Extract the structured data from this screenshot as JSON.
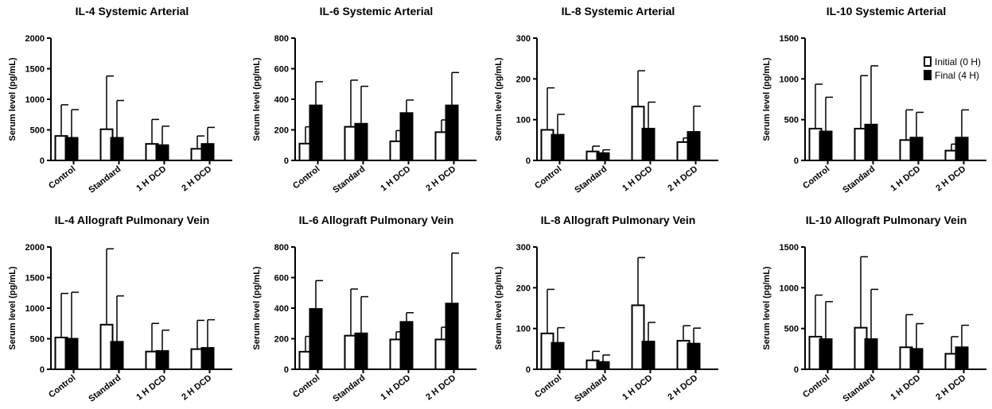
{
  "legend": {
    "initial_label": "Initial (0 H)",
    "final_label": "Final (4 H)"
  },
  "chart_data": [
    {
      "type": "bar",
      "title": "IL-4 Systemic Arterial",
      "ylabel": "Serum level (pg/mL)",
      "ylim": [
        0,
        2000
      ],
      "yticks": [
        0,
        500,
        1000,
        1500,
        2000
      ],
      "categories": [
        "Control",
        "Standard",
        "1 H DCD",
        "2 H DCD"
      ],
      "series": [
        {
          "name": "Initial (0 H)",
          "values": [
            400,
            510,
            270,
            190
          ],
          "errors": [
            510,
            870,
            400,
            210
          ],
          "color": "#ffffff"
        },
        {
          "name": "Final (4 H)",
          "values": [
            370,
            370,
            250,
            270
          ],
          "errors": [
            460,
            610,
            310,
            270
          ],
          "color": "#000000"
        }
      ]
    },
    {
      "type": "bar",
      "title": "IL-6 Systemic Arterial",
      "ylabel": "Serum level (pg/mL)",
      "ylim": [
        0,
        800
      ],
      "yticks": [
        0,
        200,
        400,
        600,
        800
      ],
      "categories": [
        "Control",
        "Standard",
        "1 H DCD",
        "2 H DCD"
      ],
      "series": [
        {
          "name": "Initial (0 H)",
          "values": [
            110,
            220,
            125,
            185
          ],
          "errors": [
            110,
            305,
            70,
            80
          ],
          "color": "#ffffff"
        },
        {
          "name": "Final (4 H)",
          "values": [
            360,
            240,
            310,
            360
          ],
          "errors": [
            155,
            245,
            85,
            215
          ],
          "color": "#000000"
        }
      ]
    },
    {
      "type": "bar",
      "title": "IL-8 Systemic Arterial",
      "ylabel": "Serum level (pg/mL)",
      "ylim": [
        0,
        300
      ],
      "yticks": [
        0,
        100,
        200,
        300
      ],
      "categories": [
        "Control",
        "Standard",
        "1 H DCD",
        "2 H DCD"
      ],
      "series": [
        {
          "name": "Initial (0 H)",
          "values": [
            75,
            22,
            132,
            45
          ],
          "errors": [
            103,
            13,
            88,
            10
          ],
          "color": "#ffffff"
        },
        {
          "name": "Final (4 H)",
          "values": [
            63,
            18,
            78,
            70
          ],
          "errors": [
            50,
            8,
            65,
            63
          ],
          "color": "#000000"
        }
      ]
    },
    {
      "type": "bar",
      "title": "IL-10 Systemic Arterial",
      "ylabel": "Serum level (pg/mL)",
      "ylim": [
        0,
        1500
      ],
      "yticks": [
        0,
        500,
        1000,
        1500
      ],
      "categories": [
        "Control",
        "Standard",
        "1 H DCD",
        "2 H DCD"
      ],
      "series": [
        {
          "name": "Initial (0 H)",
          "values": [
            390,
            390,
            250,
            120
          ],
          "errors": [
            545,
            650,
            370,
            80
          ],
          "color": "#ffffff"
        },
        {
          "name": "Final (4 H)",
          "values": [
            355,
            440,
            280,
            280
          ],
          "errors": [
            420,
            720,
            310,
            340
          ],
          "color": "#000000"
        }
      ]
    },
    {
      "type": "bar",
      "title": "IL-4 Allograft Pulmonary Vein",
      "ylabel": "Serum level (pg/mL)",
      "ylim": [
        0,
        2000
      ],
      "yticks": [
        0,
        500,
        1000,
        1500,
        2000
      ],
      "categories": [
        "Control",
        "Standard",
        "1 H DCD",
        "2 H DCD"
      ],
      "series": [
        {
          "name": "Initial (0 H)",
          "values": [
            520,
            730,
            290,
            330
          ],
          "errors": [
            720,
            1240,
            460,
            470
          ],
          "color": "#ffffff"
        },
        {
          "name": "Final (4 H)",
          "values": [
            500,
            450,
            300,
            350
          ],
          "errors": [
            760,
            750,
            340,
            460
          ],
          "color": "#000000"
        }
      ]
    },
    {
      "type": "bar",
      "title": "IL-6 Allograft Pulmonary Vein",
      "ylabel": "Serum level (pg/mL)",
      "ylim": [
        0,
        800
      ],
      "yticks": [
        0,
        200,
        400,
        600,
        800
      ],
      "categories": [
        "Control",
        "Standard",
        "1 H DCD",
        "2 H DCD"
      ],
      "series": [
        {
          "name": "Initial (0 H)",
          "values": [
            115,
            220,
            195,
            195
          ],
          "errors": [
            100,
            305,
            50,
            80
          ],
          "color": "#ffffff"
        },
        {
          "name": "Final (4 H)",
          "values": [
            395,
            235,
            310,
            430
          ],
          "errors": [
            185,
            240,
            60,
            330
          ],
          "color": "#000000"
        }
      ]
    },
    {
      "type": "bar",
      "title": "IL-8 Allograft Pulmonary Vein",
      "ylabel": "Serum level (pg/mL)",
      "ylim": [
        0,
        300
      ],
      "yticks": [
        0,
        100,
        200,
        300
      ],
      "categories": [
        "Control",
        "Standard",
        "1 H DCD",
        "2 H DCD"
      ],
      "series": [
        {
          "name": "Initial (0 H)",
          "values": [
            88,
            22,
            157,
            70
          ],
          "errors": [
            108,
            22,
            117,
            37
          ],
          "color": "#ffffff"
        },
        {
          "name": "Final (4 H)",
          "values": [
            65,
            18,
            68,
            63
          ],
          "errors": [
            37,
            17,
            47,
            38
          ],
          "color": "#000000"
        }
      ]
    },
    {
      "type": "bar",
      "title": "IL-10 Allograft Pulmonary Vein",
      "ylabel": "Serum level (pg/mL)",
      "ylim": [
        0,
        1500
      ],
      "yticks": [
        0,
        500,
        1000,
        1500
      ],
      "categories": [
        "Control",
        "Standard",
        "1 H DCD",
        "2 H DCD"
      ],
      "series": [
        {
          "name": "Initial (0 H)",
          "values": [
            400,
            510,
            270,
            190
          ],
          "errors": [
            510,
            870,
            400,
            210
          ],
          "color": "#ffffff"
        },
        {
          "name": "Final (4 H)",
          "values": [
            370,
            370,
            250,
            270
          ],
          "errors": [
            460,
            610,
            310,
            270
          ],
          "color": "#000000"
        }
      ]
    }
  ]
}
